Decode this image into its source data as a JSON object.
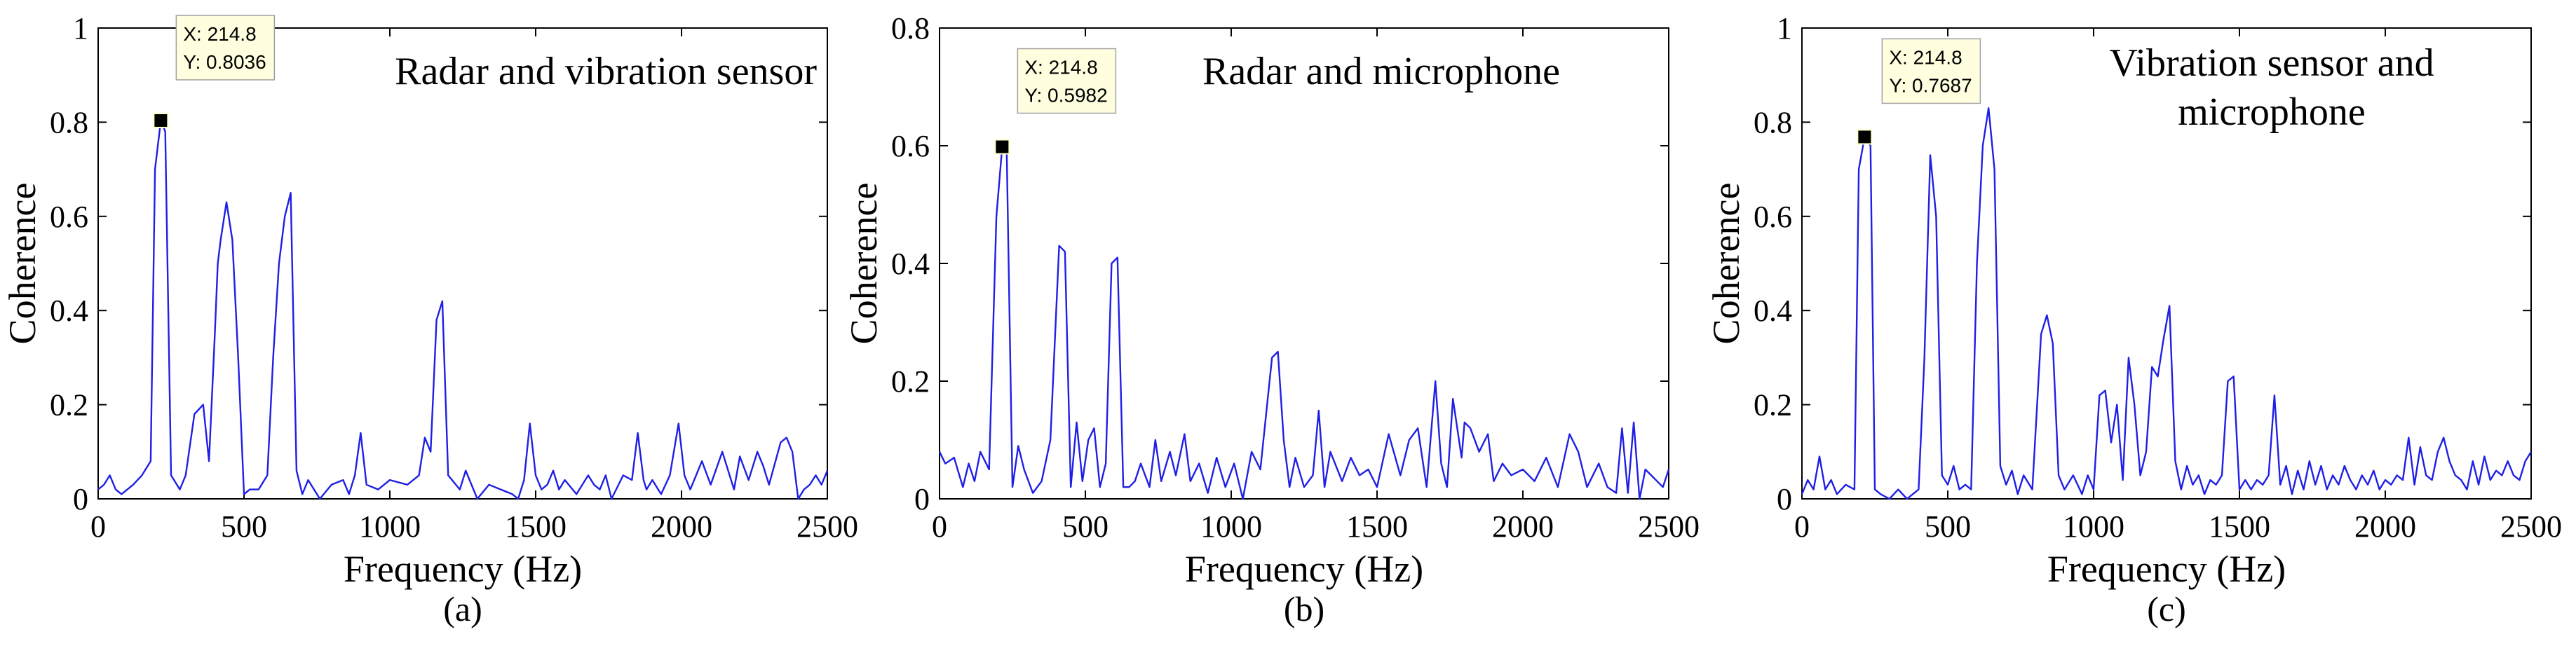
{
  "chart_data": [
    {
      "type": "line",
      "panel_label": "(a)",
      "annotation_lines": [
        "Radar and vibration sensor"
      ],
      "xlabel": "Frequency (Hz)",
      "ylabel": "Coherence",
      "xlim": [
        0,
        2500
      ],
      "ylim": [
        0,
        1
      ],
      "xticks": [
        0,
        500,
        1000,
        1500,
        2000,
        2500
      ],
      "yticks": [
        0,
        0.2,
        0.4,
        0.6,
        0.8,
        1
      ],
      "ytick_labels": [
        "0",
        "0.2",
        "0.4",
        "0.6",
        "0.8",
        "1"
      ],
      "grid": false,
      "line_color": "#1f1fe6",
      "datatip": {
        "x": 214.8,
        "y": 0.8036,
        "x_label": "X: 214.8",
        "y_label": "Y: 0.8036"
      },
      "x": [
        0,
        20,
        40,
        60,
        80,
        100,
        120,
        150,
        180,
        195,
        214.8,
        230,
        250,
        280,
        300,
        330,
        360,
        380,
        400,
        410,
        420,
        440,
        460,
        480,
        500,
        520,
        550,
        580,
        600,
        620,
        640,
        660,
        680,
        700,
        720,
        760,
        800,
        840,
        860,
        880,
        900,
        920,
        960,
        1000,
        1060,
        1100,
        1120,
        1140,
        1160,
        1180,
        1200,
        1240,
        1260,
        1300,
        1340,
        1380,
        1420,
        1440,
        1460,
        1480,
        1500,
        1520,
        1540,
        1560,
        1580,
        1600,
        1640,
        1680,
        1700,
        1720,
        1740,
        1760,
        1800,
        1830,
        1850,
        1870,
        1880,
        1900,
        1930,
        1960,
        1990,
        2010,
        2030,
        2050,
        2070,
        2100,
        2140,
        2180,
        2200,
        2230,
        2260,
        2280,
        2300,
        2340,
        2360,
        2380,
        2400,
        2420,
        2440,
        2460,
        2480,
        2500
      ],
      "y": [
        0.02,
        0.03,
        0.05,
        0.02,
        0.01,
        0.02,
        0.03,
        0.05,
        0.08,
        0.7,
        0.8036,
        0.78,
        0.05,
        0.02,
        0.05,
        0.18,
        0.2,
        0.08,
        0.35,
        0.5,
        0.55,
        0.63,
        0.55,
        0.3,
        0.01,
        0.02,
        0.02,
        0.05,
        0.3,
        0.5,
        0.6,
        0.65,
        0.06,
        0.01,
        0.04,
        0.0,
        0.03,
        0.04,
        0.01,
        0.05,
        0.14,
        0.03,
        0.02,
        0.04,
        0.03,
        0.05,
        0.13,
        0.1,
        0.38,
        0.42,
        0.05,
        0.02,
        0.06,
        0.0,
        0.03,
        0.02,
        0.01,
        0.0,
        0.04,
        0.16,
        0.05,
        0.02,
        0.03,
        0.06,
        0.02,
        0.04,
        0.01,
        0.05,
        0.03,
        0.02,
        0.05,
        0.0,
        0.05,
        0.04,
        0.14,
        0.04,
        0.02,
        0.04,
        0.01,
        0.05,
        0.16,
        0.05,
        0.02,
        0.05,
        0.08,
        0.03,
        0.1,
        0.02,
        0.09,
        0.04,
        0.1,
        0.07,
        0.03,
        0.12,
        0.13,
        0.1,
        0.0,
        0.02,
        0.03,
        0.05,
        0.03,
        0.06
      ]
    },
    {
      "type": "line",
      "panel_label": "(b)",
      "annotation_lines": [
        "Radar and microphone"
      ],
      "xlabel": "Frequency (Hz)",
      "ylabel": "Coherence",
      "xlim": [
        0,
        2500
      ],
      "ylim": [
        0,
        0.8
      ],
      "xticks": [
        0,
        500,
        1000,
        1500,
        2000,
        2500
      ],
      "yticks": [
        0,
        0.2,
        0.4,
        0.6,
        0.8
      ],
      "ytick_labels": [
        "0",
        "0.2",
        "0.4",
        "0.6",
        "0.8"
      ],
      "grid": false,
      "line_color": "#1f1fe6",
      "datatip": {
        "x": 214.8,
        "y": 0.5982,
        "x_label": "X: 214.8",
        "y_label": "Y: 0.5982"
      },
      "x": [
        0,
        20,
        50,
        80,
        100,
        120,
        140,
        170,
        195,
        214.8,
        230,
        250,
        270,
        290,
        320,
        350,
        380,
        410,
        430,
        450,
        470,
        490,
        510,
        530,
        550,
        570,
        590,
        610,
        630,
        650,
        670,
        690,
        720,
        740,
        760,
        790,
        810,
        840,
        860,
        890,
        920,
        950,
        980,
        1010,
        1040,
        1070,
        1100,
        1140,
        1160,
        1180,
        1200,
        1220,
        1250,
        1280,
        1300,
        1320,
        1340,
        1380,
        1410,
        1440,
        1470,
        1500,
        1540,
        1580,
        1610,
        1640,
        1670,
        1700,
        1720,
        1740,
        1760,
        1790,
        1800,
        1820,
        1850,
        1880,
        1900,
        1930,
        1960,
        2000,
        2040,
        2080,
        2120,
        2160,
        2190,
        2220,
        2260,
        2290,
        2320,
        2340,
        2360,
        2380,
        2400,
        2420,
        2440,
        2460,
        2480,
        2500
      ],
      "y": [
        0.08,
        0.06,
        0.07,
        0.02,
        0.06,
        0.03,
        0.08,
        0.05,
        0.48,
        0.5982,
        0.6,
        0.02,
        0.09,
        0.05,
        0.01,
        0.03,
        0.1,
        0.43,
        0.42,
        0.02,
        0.13,
        0.03,
        0.1,
        0.12,
        0.02,
        0.06,
        0.4,
        0.41,
        0.02,
        0.02,
        0.03,
        0.06,
        0.02,
        0.1,
        0.03,
        0.08,
        0.04,
        0.11,
        0.03,
        0.06,
        0.01,
        0.07,
        0.02,
        0.06,
        0.0,
        0.08,
        0.05,
        0.24,
        0.25,
        0.1,
        0.02,
        0.07,
        0.02,
        0.04,
        0.15,
        0.02,
        0.08,
        0.03,
        0.07,
        0.04,
        0.05,
        0.02,
        0.11,
        0.04,
        0.1,
        0.12,
        0.02,
        0.2,
        0.06,
        0.02,
        0.17,
        0.07,
        0.13,
        0.12,
        0.08,
        0.11,
        0.03,
        0.06,
        0.04,
        0.05,
        0.03,
        0.07,
        0.02,
        0.11,
        0.08,
        0.02,
        0.06,
        0.02,
        0.01,
        0.12,
        0.01,
        0.13,
        0.0,
        0.05,
        0.04,
        0.03,
        0.02,
        0.05
      ]
    },
    {
      "type": "line",
      "panel_label": "(c)",
      "annotation_lines": [
        "Vibration sensor and",
        "microphone"
      ],
      "xlabel": "Frequency (Hz)",
      "ylabel": "Coherence",
      "xlim": [
        0,
        2500
      ],
      "ylim": [
        0,
        1
      ],
      "xticks": [
        0,
        500,
        1000,
        1500,
        2000,
        2500
      ],
      "yticks": [
        0,
        0.2,
        0.4,
        0.6,
        0.8,
        1
      ],
      "ytick_labels": [
        "0",
        "0.2",
        "0.4",
        "0.6",
        "0.8",
        "1"
      ],
      "grid": false,
      "line_color": "#1f1fe6",
      "datatip": {
        "x": 214.8,
        "y": 0.7687,
        "x_label": "X: 214.8",
        "y_label": "Y: 0.7687"
      },
      "x": [
        0,
        20,
        40,
        60,
        80,
        100,
        120,
        150,
        180,
        195,
        214.8,
        235,
        250,
        270,
        300,
        330,
        360,
        400,
        420,
        440,
        460,
        480,
        500,
        520,
        540,
        560,
        580,
        600,
        620,
        640,
        660,
        680,
        700,
        720,
        740,
        760,
        790,
        820,
        840,
        860,
        880,
        900,
        930,
        960,
        980,
        1000,
        1020,
        1040,
        1060,
        1080,
        1100,
        1120,
        1140,
        1160,
        1180,
        1200,
        1220,
        1240,
        1260,
        1280,
        1300,
        1320,
        1340,
        1360,
        1380,
        1400,
        1420,
        1440,
        1460,
        1480,
        1500,
        1520,
        1540,
        1560,
        1580,
        1600,
        1620,
        1640,
        1660,
        1680,
        1700,
        1720,
        1740,
        1760,
        1780,
        1800,
        1820,
        1840,
        1860,
        1880,
        1900,
        1920,
        1940,
        1960,
        1980,
        2000,
        2020,
        2040,
        2060,
        2080,
        2100,
        2120,
        2140,
        2160,
        2180,
        2200,
        2220,
        2240,
        2260,
        2280,
        2300,
        2320,
        2340,
        2360,
        2380,
        2400,
        2420,
        2440,
        2460,
        2480,
        2500
      ],
      "y": [
        0.01,
        0.04,
        0.02,
        0.09,
        0.02,
        0.04,
        0.01,
        0.03,
        0.02,
        0.7,
        0.7687,
        0.75,
        0.02,
        0.01,
        0.0,
        0.02,
        0.0,
        0.02,
        0.3,
        0.73,
        0.6,
        0.05,
        0.03,
        0.07,
        0.02,
        0.03,
        0.02,
        0.5,
        0.75,
        0.83,
        0.7,
        0.07,
        0.03,
        0.06,
        0.01,
        0.05,
        0.02,
        0.35,
        0.39,
        0.33,
        0.05,
        0.02,
        0.05,
        0.01,
        0.05,
        0.02,
        0.22,
        0.23,
        0.12,
        0.2,
        0.04,
        0.3,
        0.2,
        0.05,
        0.1,
        0.28,
        0.26,
        0.34,
        0.41,
        0.08,
        0.02,
        0.07,
        0.03,
        0.05,
        0.01,
        0.04,
        0.03,
        0.05,
        0.25,
        0.26,
        0.02,
        0.04,
        0.02,
        0.04,
        0.03,
        0.05,
        0.22,
        0.03,
        0.07,
        0.01,
        0.06,
        0.02,
        0.08,
        0.03,
        0.07,
        0.02,
        0.05,
        0.03,
        0.07,
        0.04,
        0.02,
        0.05,
        0.03,
        0.06,
        0.02,
        0.04,
        0.03,
        0.05,
        0.04,
        0.13,
        0.03,
        0.11,
        0.05,
        0.04,
        0.1,
        0.13,
        0.08,
        0.05,
        0.04,
        0.02,
        0.08,
        0.03,
        0.09,
        0.04,
        0.06,
        0.05,
        0.08,
        0.05,
        0.04,
        0.08,
        0.1
      ]
    }
  ]
}
